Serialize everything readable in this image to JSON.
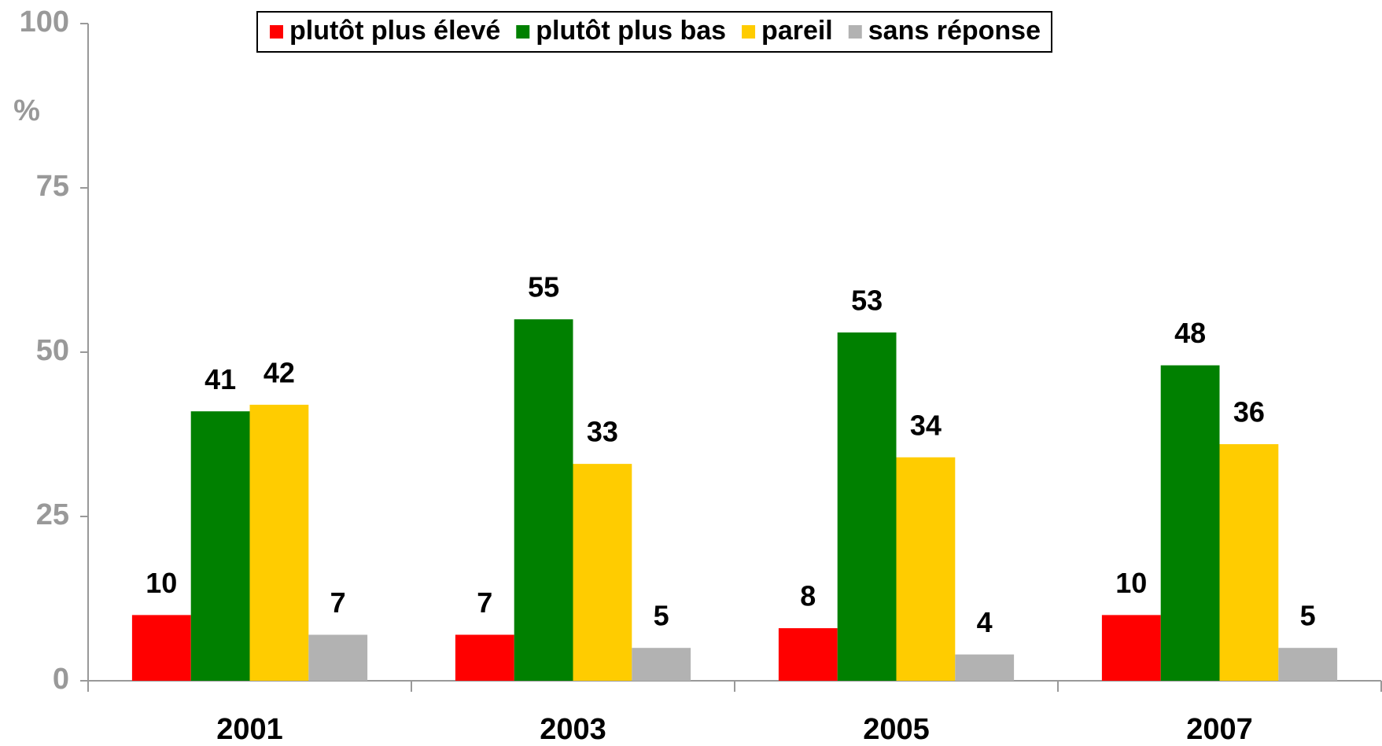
{
  "chart_data": {
    "type": "bar",
    "y_label": "%",
    "categories": [
      "2001",
      "2003",
      "2005",
      "2007"
    ],
    "series": [
      {
        "name": "plutôt plus élevé",
        "color": "#ff0000",
        "values": [
          10,
          7,
          8,
          10
        ]
      },
      {
        "name": "plutôt plus bas",
        "color": "#008000",
        "values": [
          41,
          55,
          53,
          48
        ]
      },
      {
        "name": "pareil",
        "color": "#ffcc00",
        "values": [
          42,
          33,
          34,
          36
        ]
      },
      {
        "name": "sans réponse",
        "color": "#b2b2b2",
        "values": [
          7,
          5,
          4,
          5
        ]
      }
    ],
    "ylim": [
      0,
      100
    ],
    "yticks": [
      0,
      25,
      50,
      75,
      100
    ],
    "grid": false,
    "legend": "top"
  }
}
